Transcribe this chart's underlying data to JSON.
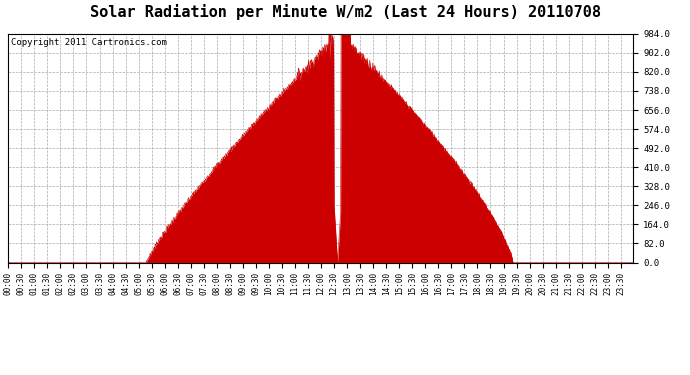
{
  "title": "Solar Radiation per Minute W/m2 (Last 24 Hours) 20110708",
  "copyright": "Copyright 2011 Cartronics.com",
  "bg_color": "#ffffff",
  "plot_bg_color": "#ffffff",
  "fill_color": "#cc0000",
  "grid_color": "#aaaaaa",
  "dashed_line_color": "#cc0000",
  "ymin": 0.0,
  "ymax": 984.0,
  "yticks": [
    0.0,
    82.0,
    164.0,
    246.0,
    328.0,
    410.0,
    492.0,
    574.0,
    656.0,
    738.0,
    820.0,
    902.0,
    984.0
  ],
  "num_minutes": 1440,
  "sunrise_minute": 318,
  "sunset_minute": 1162,
  "peak_minute": 762,
  "title_fontsize": 11,
  "copyright_fontsize": 6.5,
  "tick_fontsize": 5.5,
  "ytick_fontsize": 6.5
}
